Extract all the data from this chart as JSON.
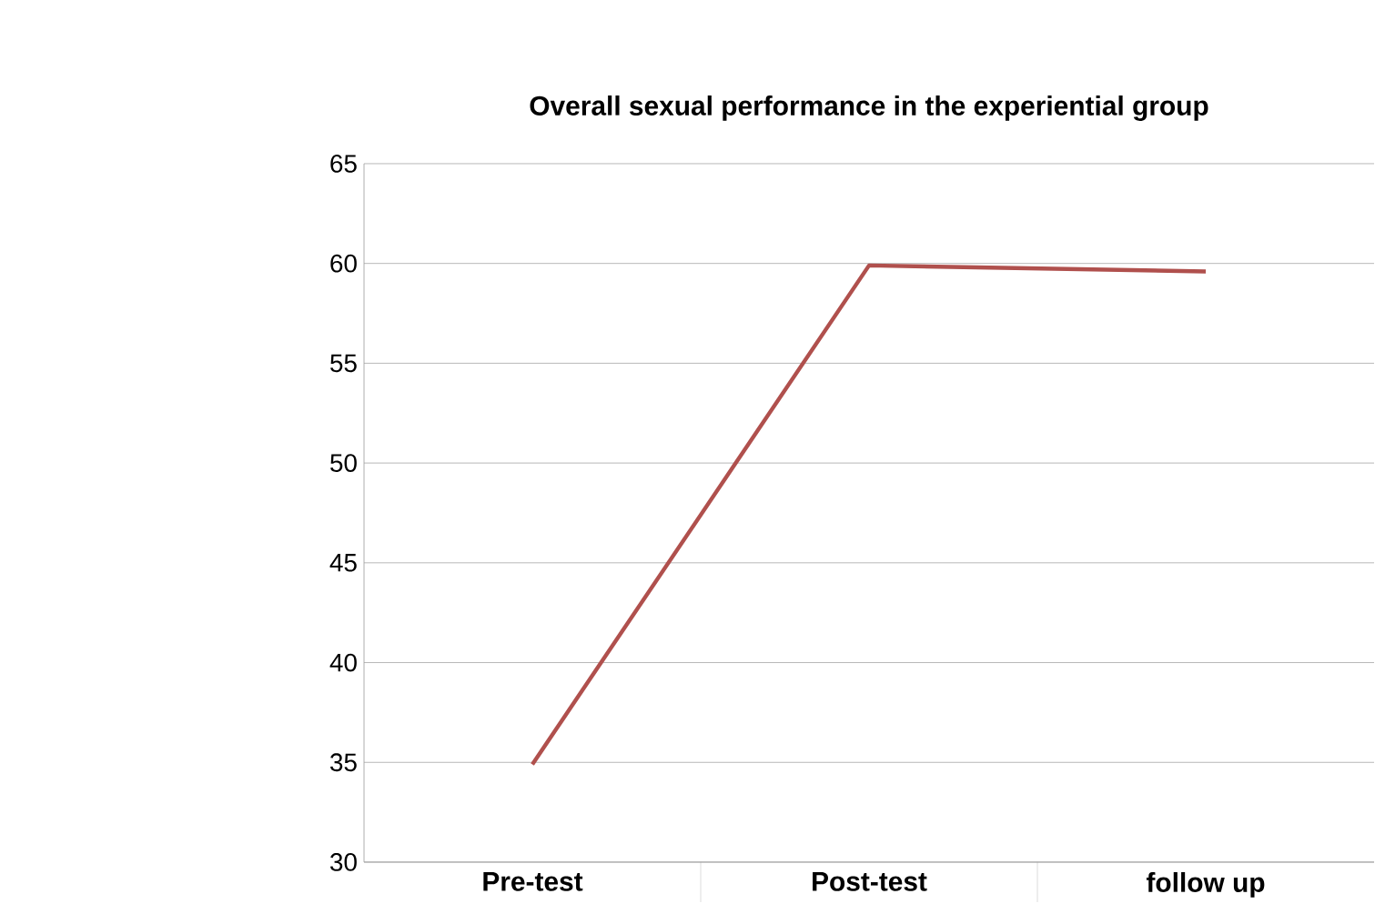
{
  "chart_data": {
    "type": "line",
    "title": "Overall sexual performance in the experiential group",
    "categories": [
      "Pre-test",
      "Post-test",
      "follow up"
    ],
    "series": [
      {
        "color": "#b0504d",
        "values": [
          34.9,
          59.9,
          59.6
        ]
      }
    ],
    "ylim": [
      30,
      65
    ],
    "yticks": [
      30,
      35,
      40,
      45,
      50,
      55,
      60,
      65
    ],
    "grid": "y",
    "marker": "none",
    "line_style": "solid"
  }
}
